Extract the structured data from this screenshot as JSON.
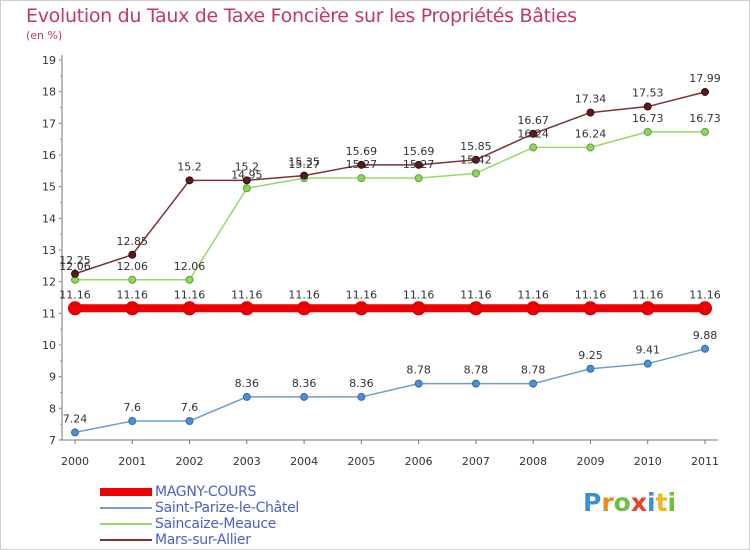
{
  "chart_data": {
    "type": "line",
    "title": "Evolution du Taux de Taxe Foncière sur les Propriétés Bâties",
    "ylabel": "(en %)",
    "xlabel": "",
    "categories": [
      "2000",
      "2001",
      "2002",
      "2003",
      "2004",
      "2005",
      "2006",
      "2007",
      "2008",
      "2009",
      "2010",
      "2011"
    ],
    "ylim": [
      7,
      19
    ],
    "yticks": [
      "7",
      "8",
      "9",
      "10",
      "11",
      "12",
      "13",
      "14",
      "15",
      "16",
      "17",
      "18",
      "19"
    ],
    "series": [
      {
        "name": "MAGNY-COURS",
        "color": "#ee0000",
        "values": [
          11.16,
          11.16,
          11.16,
          11.16,
          11.16,
          11.16,
          11.16,
          11.16,
          11.16,
          11.16,
          11.16,
          11.16
        ],
        "labels": [
          "11.16",
          "11.16",
          "11.16",
          "11.16",
          "11.16",
          "11.16",
          "11.16",
          "11.16",
          "11.16",
          "11.16",
          "11.16",
          "11.16"
        ]
      },
      {
        "name": "Saint-Parize-le-Châtel",
        "color": "#6c9fd3",
        "values": [
          7.24,
          7.6,
          7.6,
          8.36,
          8.36,
          8.36,
          8.78,
          8.78,
          8.78,
          9.25,
          9.41,
          9.88
        ],
        "labels": [
          "7.24",
          "7.6",
          "7.6",
          "8.36",
          "8.36",
          "8.36",
          "8.78",
          "8.78",
          "8.78",
          "9.25",
          "9.41",
          "9.88"
        ]
      },
      {
        "name": "Saincaize-Meauce",
        "color": "#9ad76a",
        "values": [
          12.06,
          12.06,
          12.06,
          14.95,
          15.27,
          15.27,
          15.27,
          15.42,
          16.24,
          16.24,
          16.73,
          16.73
        ],
        "labels": [
          "12.06",
          "12.06",
          "12.06",
          "14.95",
          "15.27",
          "15.27",
          "15.27",
          "15.42",
          "16.24",
          "16.24",
          "16.73",
          "16.73"
        ]
      },
      {
        "name": "Mars-sur-Allier",
        "color": "#7a3333",
        "values": [
          12.25,
          12.85,
          15.2,
          15.2,
          15.35,
          15.69,
          15.69,
          15.85,
          16.67,
          17.34,
          17.53,
          17.99
        ],
        "labels": [
          "12.25",
          "12.85",
          "15.2",
          "15.2",
          "15.35",
          "15.69",
          "15.69",
          "15.85",
          "16.67",
          "17.34",
          "17.53",
          "17.99"
        ]
      }
    ],
    "grid": false,
    "legend_position": "bottom-left"
  },
  "logo": {
    "text": "Proxiti",
    "letters": [
      "P",
      "r",
      "o",
      "x",
      "i",
      "t",
      "i"
    ],
    "colors": [
      "#3b8fd6",
      "#f08a1e",
      "#6cbf3f",
      "#e8412c",
      "#3b8fd6",
      "#f0b81e",
      "#6cbf3f"
    ]
  }
}
